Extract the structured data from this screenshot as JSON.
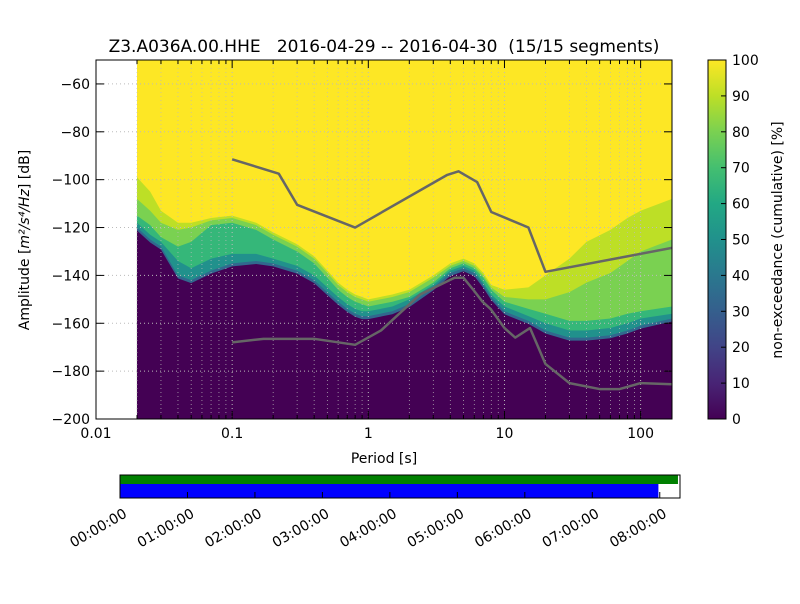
{
  "chart_data": [
    {
      "type": "heatmap",
      "title": "Z3.A036A.00.HHE   2016-04-29 -- 2016-04-30  (15/15 segments)",
      "xlabel": "Period [s]",
      "ylabel_prefix": "Amplitude [",
      "ylabel_math": "m²/s⁴/Hz",
      "ylabel_suffix": "] [dB]",
      "x_scale": "log",
      "xlim": [
        0.01,
        170
      ],
      "ylim": [
        -200,
        -50
      ],
      "x_ticks": [
        {
          "value": 0.01,
          "label": "0.01"
        },
        {
          "value": 0.1,
          "label": "0.1"
        },
        {
          "value": 1,
          "label": "1"
        },
        {
          "value": 10,
          "label": "10"
        },
        {
          "value": 100,
          "label": "100"
        }
      ],
      "y_ticks": [
        {
          "value": -60,
          "label": "−60"
        },
        {
          "value": -80,
          "label": "−80"
        },
        {
          "value": -100,
          "label": "−100"
        },
        {
          "value": -120,
          "label": "−120"
        },
        {
          "value": -140,
          "label": "−140"
        },
        {
          "value": -160,
          "label": "−160"
        },
        {
          "value": -180,
          "label": "−180"
        },
        {
          "value": -200,
          "label": "−200"
        }
      ],
      "grid": true,
      "data_period_start": 0.02,
      "colormap": "viridis",
      "colors": {
        "low": "#440154",
        "mid": "#21918c",
        "lightgreen": "#a0da39",
        "high": "#fde725",
        "line": "#666666"
      },
      "colorbar": {
        "label": "non-exceedance (cumulative) [%]",
        "range": [
          0,
          100
        ],
        "ticks": [
          {
            "value": 0,
            "label": "0"
          },
          {
            "value": 10,
            "label": "10"
          },
          {
            "value": 20,
            "label": "20"
          },
          {
            "value": 30,
            "label": "30"
          },
          {
            "value": 40,
            "label": "40"
          },
          {
            "value": 50,
            "label": "50"
          },
          {
            "value": 60,
            "label": "60"
          },
          {
            "value": 70,
            "label": "70"
          },
          {
            "value": 80,
            "label": "80"
          },
          {
            "value": 90,
            "label": "90"
          },
          {
            "value": 100,
            "label": "100"
          }
        ]
      },
      "distribution_bands": [
        {
          "name": "p05",
          "x": [
            0.02,
            0.025,
            0.03,
            0.04,
            0.05,
            0.07,
            0.1,
            0.15,
            0.2,
            0.3,
            0.4,
            0.5,
            0.6,
            0.7,
            0.8,
            0.9,
            1,
            1.5,
            2,
            3,
            4,
            5,
            6,
            7,
            8,
            10,
            15,
            20,
            30,
            40,
            60,
            80,
            100,
            170
          ],
          "y": [
            -120,
            -125,
            -128,
            -140,
            -142,
            -138,
            -135,
            -134,
            -135,
            -138,
            -142,
            -147,
            -151,
            -154,
            -156,
            -157,
            -157,
            -155,
            -152,
            -145,
            -139,
            -137,
            -139,
            -144,
            -149,
            -155,
            -159,
            -163,
            -166,
            -166,
            -165,
            -163,
            -161,
            -158
          ]
        },
        {
          "name": "p15",
          "x": [
            0.02,
            0.025,
            0.03,
            0.04,
            0.05,
            0.07,
            0.1,
            0.15,
            0.2,
            0.3,
            0.4,
            0.5,
            0.6,
            0.7,
            0.8,
            0.9,
            1,
            1.5,
            2,
            3,
            4,
            5,
            6,
            7,
            8,
            10,
            15,
            20,
            30,
            40,
            60,
            80,
            100,
            170
          ],
          "y": [
            -118,
            -123,
            -126,
            -134,
            -137,
            -133,
            -131,
            -131,
            -133,
            -136,
            -140,
            -145,
            -149,
            -152,
            -154,
            -155,
            -155,
            -153,
            -150,
            -144,
            -138,
            -136,
            -138,
            -143,
            -148,
            -153,
            -157,
            -160,
            -163,
            -163,
            -162,
            -160,
            -158,
            -156
          ]
        },
        {
          "name": "p40",
          "x": [
            0.02,
            0.025,
            0.03,
            0.04,
            0.05,
            0.07,
            0.1,
            0.15,
            0.2,
            0.3,
            0.4,
            0.5,
            0.6,
            0.7,
            0.8,
            0.9,
            1,
            1.5,
            2,
            3,
            4,
            5,
            6,
            7,
            8,
            10,
            15,
            20,
            30,
            40,
            60,
            80,
            100,
            170
          ],
          "y": [
            -115,
            -119,
            -124,
            -128,
            -126,
            -119,
            -118,
            -121,
            -125,
            -130,
            -135,
            -141,
            -146,
            -149,
            -151,
            -152,
            -153,
            -151,
            -149,
            -143,
            -137,
            -135,
            -137,
            -141,
            -146,
            -151,
            -154,
            -156,
            -159,
            -159,
            -158,
            -156,
            -155,
            -153
          ]
        },
        {
          "name": "p80",
          "x": [
            0.02,
            0.025,
            0.03,
            0.04,
            0.05,
            0.07,
            0.1,
            0.15,
            0.2,
            0.3,
            0.4,
            0.5,
            0.6,
            0.7,
            0.8,
            0.9,
            1,
            1.5,
            2,
            3,
            4,
            5,
            6,
            7,
            8,
            10,
            15,
            20,
            30,
            40,
            60,
            80,
            100,
            170
          ],
          "y": [
            -108,
            -113,
            -118,
            -121,
            -120,
            -117,
            -116,
            -119,
            -123,
            -128,
            -133,
            -139,
            -144,
            -147,
            -149,
            -150,
            -151,
            -149,
            -147,
            -141,
            -136,
            -134,
            -136,
            -140,
            -145,
            -149,
            -150,
            -150,
            -147,
            -143,
            -139,
            -134,
            -130,
            -125
          ]
        },
        {
          "name": "p95",
          "x": [
            0.02,
            0.025,
            0.03,
            0.04,
            0.05,
            0.07,
            0.1,
            0.15,
            0.2,
            0.3,
            0.4,
            0.5,
            0.6,
            0.7,
            0.8,
            0.9,
            1,
            1.5,
            2,
            3,
            4,
            5,
            6,
            7,
            8,
            10,
            15,
            20,
            30,
            40,
            60,
            80,
            100,
            170
          ],
          "y": [
            -99,
            -105,
            -113,
            -118,
            -118,
            -116,
            -115,
            -118,
            -122,
            -127,
            -132,
            -138,
            -143,
            -146,
            -148,
            -149,
            -150,
            -148,
            -146,
            -140,
            -135,
            -133,
            -135,
            -139,
            -144,
            -146,
            -145,
            -140,
            -133,
            -126,
            -121,
            -116,
            -113,
            -108
          ]
        }
      ],
      "series": [
        {
          "x": [
            0.1,
            0.22,
            0.3,
            0.8,
            3.8,
            4.6,
            6.3,
            8,
            15,
            20,
            170
          ],
          "y": [
            -91.5,
            -97.5,
            -110.5,
            -120,
            -98,
            -96.5,
            -101,
            -113.5,
            -120,
            -138.5,
            -128.5
          ]
        },
        {
          "x": [
            0.1,
            0.17,
            0.4,
            0.8,
            1.24,
            2.4,
            4.3,
            5,
            5.9,
            6.9,
            7.9,
            10,
            12,
            15.4,
            20,
            30,
            50,
            70,
            100,
            170
          ],
          "y": [
            -168,
            -166.5,
            -166.5,
            -169,
            -163,
            -148,
            -141,
            -141,
            -146,
            -151,
            -154,
            -162,
            -166,
            -162,
            -177,
            -185,
            -187.5,
            -187.5,
            -185,
            -185.5
          ]
        }
      ]
    },
    {
      "type": "timeline",
      "time_ticks": [
        "00:00:00",
        "01:00:00",
        "02:00:00",
        "03:00:00",
        "04:00:00",
        "05:00:00",
        "06:00:00",
        "07:00:00",
        "08:00:00"
      ],
      "span_hours": 8.3,
      "segments_end_hours": 8.27,
      "data_end_hours": 7.98,
      "colors": {
        "segments": "#008000",
        "data": "#0000ff"
      }
    }
  ]
}
